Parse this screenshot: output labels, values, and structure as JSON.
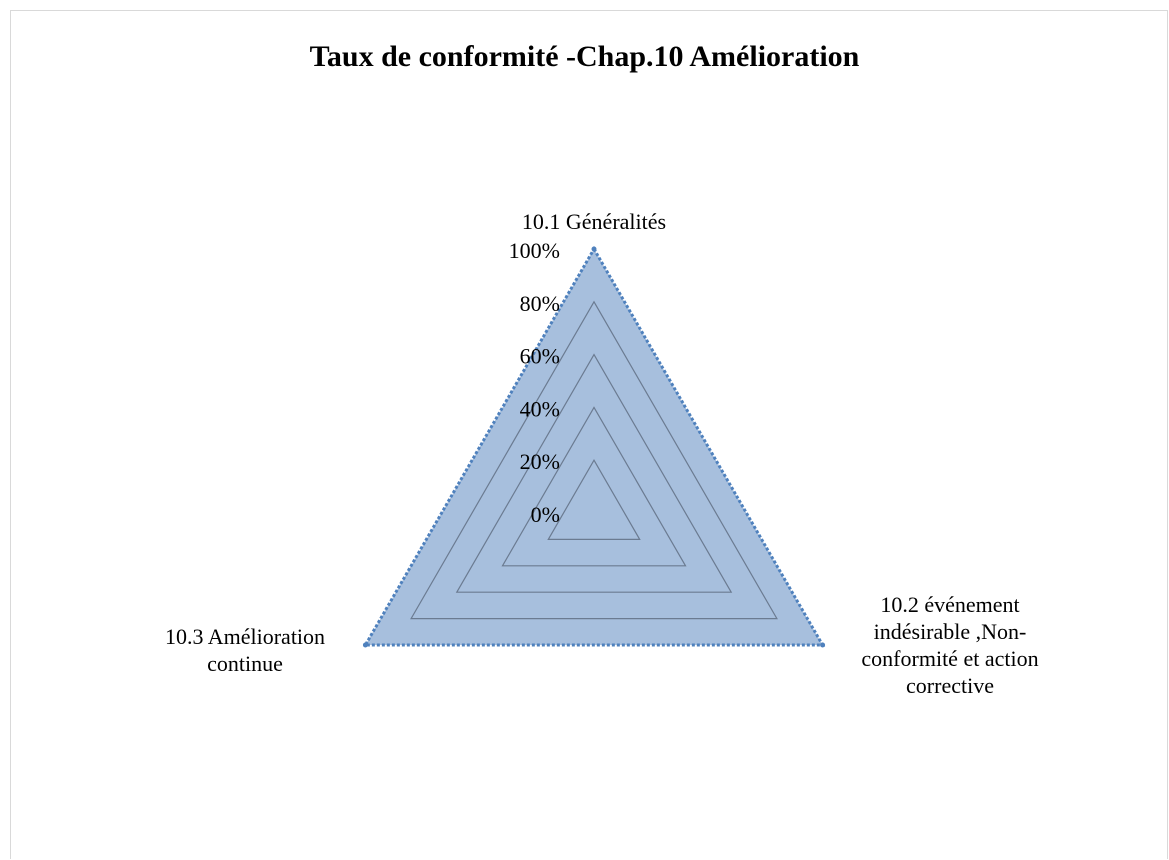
{
  "chart_data": {
    "type": "radar",
    "title": "Taux de conformité -Chap.10 Amélioration",
    "categories": [
      "10.1 Généralités",
      "10.2 événement indésirable ,Non-conformité et action corrective",
      "10.3 Amélioration continue"
    ],
    "category_label_lines": [
      [
        "10.1 Généralités"
      ],
      [
        "10.2 événement",
        "indésirable ,Non-",
        "conformité et action",
        "corrective"
      ],
      [
        "10.3 Amélioration",
        "continue"
      ]
    ],
    "series": [
      {
        "values": [
          1.0,
          1.0,
          1.0
        ]
      }
    ],
    "axis": {
      "min": 0,
      "max": 1,
      "ticks": [
        0,
        0.2,
        0.4,
        0.6,
        0.8,
        1.0
      ],
      "tick_labels": [
        "0%",
        "20%",
        "40%",
        "60%",
        "80%",
        "100%"
      ]
    },
    "grid": true,
    "legend": "none",
    "colors": {
      "fill": "#a7bfdd",
      "stroke": "#4f81bd",
      "grid": "#6b7b91"
    }
  }
}
